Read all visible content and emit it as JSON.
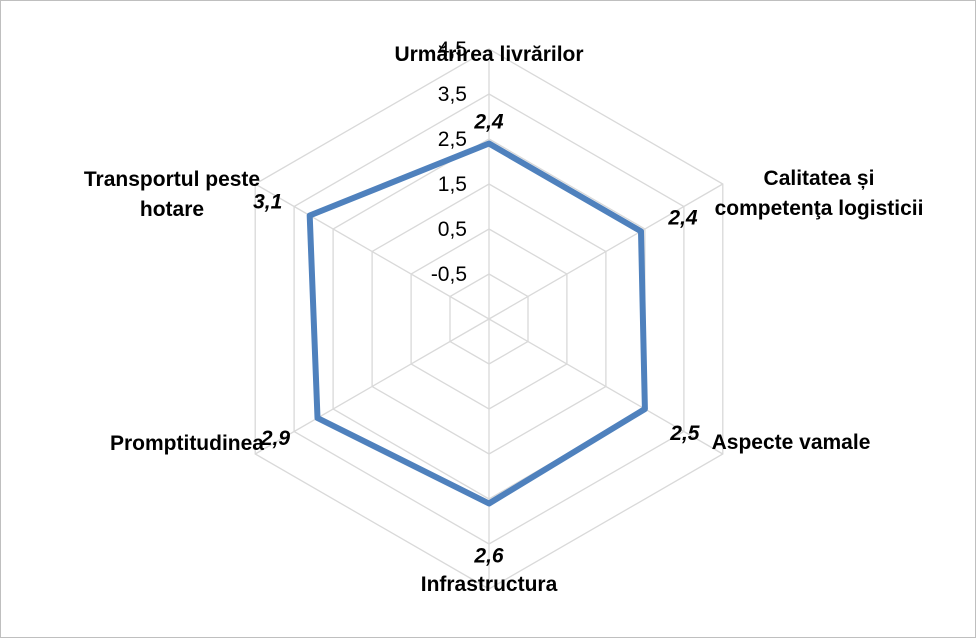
{
  "chart_data": {
    "type": "radar",
    "categories": [
      "Urmărirea livrărilor",
      "Calitatea și competenţa logisticii",
      "Aspecte vamale",
      "Infrastructura",
      "Promptitudinea",
      "Transportul peste hotare"
    ],
    "category_lines": [
      [
        "Urmărirea livrărilor"
      ],
      [
        "Calitatea și",
        "competenţa logisticii"
      ],
      [
        "Aspecte vamale"
      ],
      [
        "Infrastructura"
      ],
      [
        "Promptitudinea"
      ],
      [
        "Transportul peste",
        "hotare"
      ]
    ],
    "series": [
      {
        "values": [
          2.4,
          2.4,
          2.5,
          2.6,
          2.9,
          3.1
        ],
        "color": "#4F81BD"
      }
    ],
    "data_labels": [
      "2,4",
      "2,4",
      "2,5",
      "2,6",
      "2,9",
      "3,1"
    ],
    "axis": {
      "min": -1.5,
      "max": 4.5,
      "ticks": [
        -0.5,
        0.5,
        1.5,
        2.5,
        3.5,
        4.5
      ],
      "tick_labels": [
        "-0,5",
        "0,5",
        "1,5",
        "2,5",
        "3,5",
        "4,5"
      ]
    },
    "grid": true,
    "grid_color": "#d9d9d9",
    "legend": "none"
  }
}
